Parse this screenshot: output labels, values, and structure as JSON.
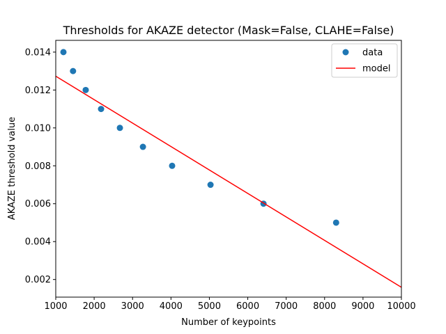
{
  "chart_data": {
    "type": "scatter",
    "title": "Thresholds for AKAZE detector (Mask=False, CLAHE=False)",
    "xlabel": "Number of keypoints",
    "ylabel": "AKAZE threshold value",
    "xlim": [
      1000,
      10000
    ],
    "ylim": [
      0.00107,
      0.01462
    ],
    "x_ticks": [
      1000,
      2000,
      3000,
      4000,
      5000,
      6000,
      7000,
      8000,
      9000,
      10000
    ],
    "x_tick_labels": [
      "1000",
      "2000",
      "3000",
      "4000",
      "5000",
      "6000",
      "7000",
      "8000",
      "9000",
      "10000"
    ],
    "y_ticks": [
      0.002,
      0.004,
      0.006,
      0.008,
      0.01,
      0.012,
      0.014
    ],
    "y_tick_labels": [
      "0.002",
      "0.004",
      "0.006",
      "0.008",
      "0.010",
      "0.012",
      "0.014"
    ],
    "grid": false,
    "legend_position": "top-right",
    "series": [
      {
        "name": "data",
        "kind": "scatter",
        "color": "#1f77b4",
        "x": [
          1200,
          1450,
          1780,
          2180,
          2670,
          3270,
          4030,
          5030,
          6410,
          8300
        ],
        "y": [
          0.014,
          0.013,
          0.012,
          0.011,
          0.01,
          0.009,
          0.008,
          0.007,
          0.006,
          0.005
        ]
      },
      {
        "name": "model",
        "kind": "line",
        "color": "#ff0000",
        "x": [
          1000,
          10000
        ],
        "y": [
          0.01273,
          0.00159
        ]
      }
    ]
  }
}
